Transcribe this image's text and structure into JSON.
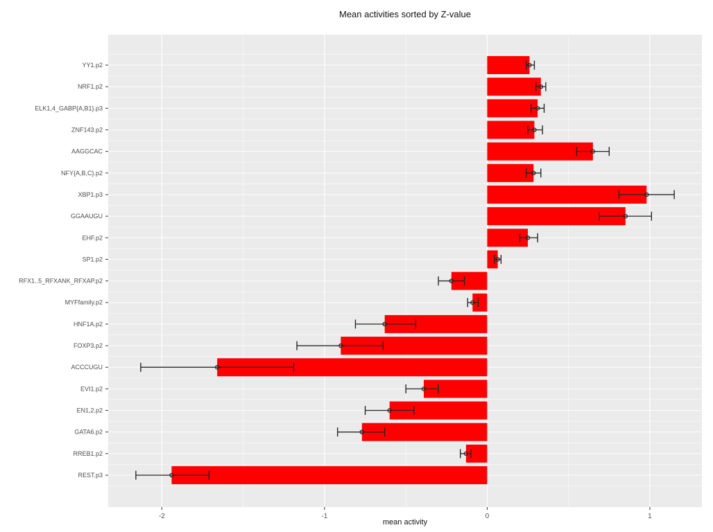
{
  "chart_data": {
    "type": "bar",
    "orientation": "horizontal",
    "title": "Mean activities sorted by Z-value",
    "xlabel": "mean activity",
    "ylabel": "",
    "legend_position": "none",
    "grid": true,
    "xticks": [
      -2,
      -1,
      0,
      1
    ],
    "xtick_labels": [
      "-2",
      "-1",
      "0",
      "1"
    ],
    "xlim": [
      -2.33,
      1.32
    ],
    "categories": [
      "YY1.p2",
      "NRF1.p2",
      "ELK1,4_GABP{A,B1}.p3",
      "ZNF143.p2",
      "AAGGCAC",
      "NFY{A,B,C}.p2",
      "XBP1.p3",
      "GGAAUGU",
      "EHF.p2",
      "SP1.p2",
      "RFX1..5_RFXANK_RFXAP.p2",
      "MYFfamily.p2",
      "HNF1A.p2",
      "FOXP3.p2",
      "ACCCUGU",
      "EVI1.p2",
      "EN1,2.p2",
      "GATA6.p2",
      "RREB1.p2",
      "REST.p3"
    ],
    "values": [
      0.26,
      0.33,
      0.31,
      0.29,
      0.65,
      0.285,
      0.98,
      0.85,
      0.25,
      0.065,
      -0.22,
      -0.09,
      -0.63,
      -0.9,
      -1.66,
      -0.39,
      -0.6,
      -0.77,
      -0.13,
      -1.94
    ],
    "error_low": [
      0.24,
      0.3,
      0.27,
      0.25,
      0.55,
      0.24,
      0.81,
      0.69,
      0.2,
      0.045,
      -0.3,
      -0.12,
      -0.81,
      -1.17,
      -2.13,
      -0.5,
      -0.75,
      -0.92,
      -0.165,
      -2.16
    ],
    "error_high": [
      0.29,
      0.36,
      0.35,
      0.34,
      0.75,
      0.33,
      1.15,
      1.01,
      0.31,
      0.085,
      -0.14,
      -0.055,
      -0.44,
      -0.64,
      -1.19,
      -0.3,
      -0.45,
      -0.63,
      -0.1,
      -1.71
    ],
    "colors": {
      "bar": "#ff0000",
      "panel_background": "#ebebeb",
      "grid_major": "#ffffff",
      "grid_minor": "#f5f5f5",
      "error_bar": "#262626",
      "axis_text": "#4d4d4d",
      "tick_mark": "#333333",
      "title_text": "#111111"
    }
  }
}
